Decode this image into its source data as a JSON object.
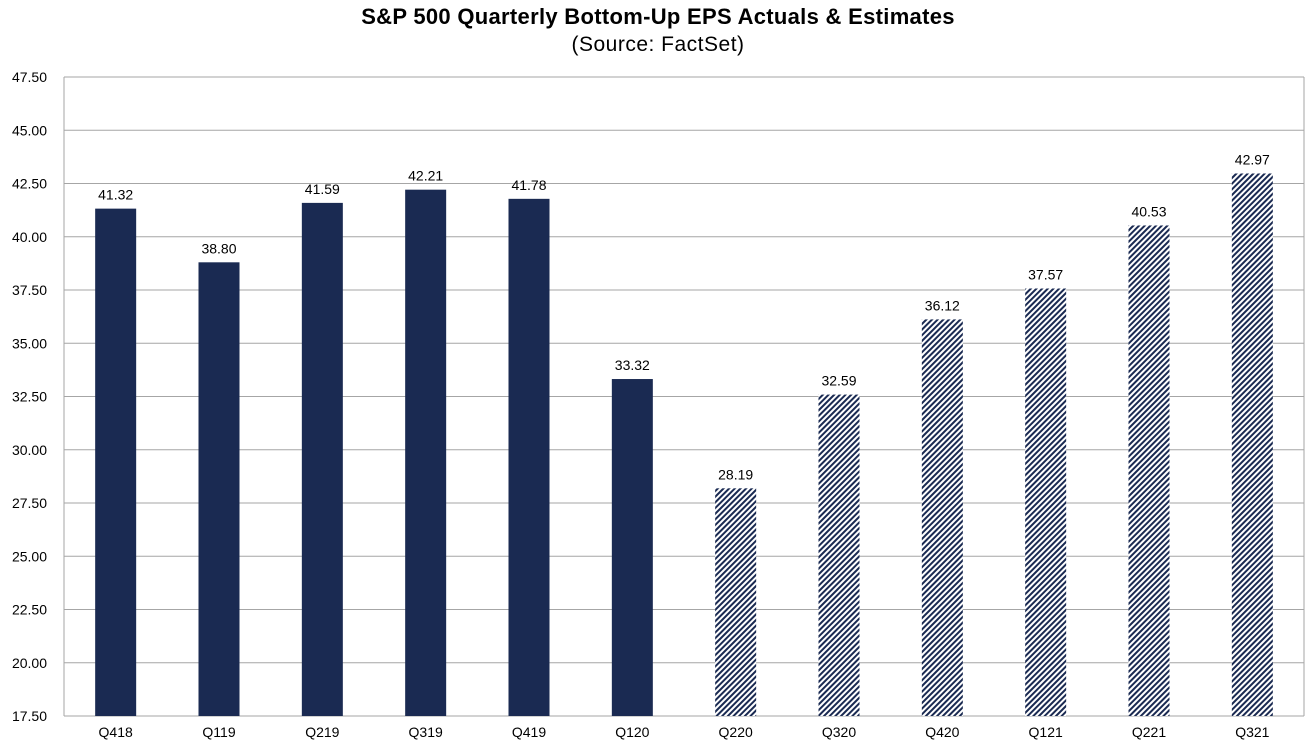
{
  "chart_data": {
    "type": "bar",
    "title": "S&P 500 Quarterly Bottom-Up EPS Actuals & Estimates",
    "subtitle": "(Source: FactSet)",
    "xlabel": "",
    "ylabel": "",
    "ylim": [
      17.5,
      47.5
    ],
    "yticks": [
      "47.50",
      "45.00",
      "42.50",
      "40.00",
      "37.50",
      "35.00",
      "32.50",
      "30.00",
      "27.50",
      "25.00",
      "22.50",
      "20.00",
      "17.50"
    ],
    "grid": true,
    "categories": [
      "Q418",
      "Q119",
      "Q219",
      "Q319",
      "Q419",
      "Q120",
      "Q220",
      "Q320",
      "Q420",
      "Q121",
      "Q221",
      "Q321"
    ],
    "values": [
      41.32,
      38.8,
      41.59,
      42.21,
      41.78,
      33.32,
      28.19,
      32.59,
      36.12,
      37.57,
      40.53,
      42.97
    ],
    "labels": [
      "41.32",
      "38.80",
      "41.59",
      "42.21",
      "41.78",
      "33.32",
      "28.19",
      "32.59",
      "36.12",
      "37.57",
      "40.53",
      "42.97"
    ],
    "bar_styles": [
      "actual",
      "actual",
      "actual",
      "actual",
      "actual",
      "actual",
      "estimate",
      "estimate",
      "estimate",
      "estimate",
      "estimate",
      "estimate"
    ],
    "colors": {
      "actual": "#1a2a52",
      "estimate_hatch": "#1a2a52",
      "grid": "#a6a6a6"
    }
  }
}
